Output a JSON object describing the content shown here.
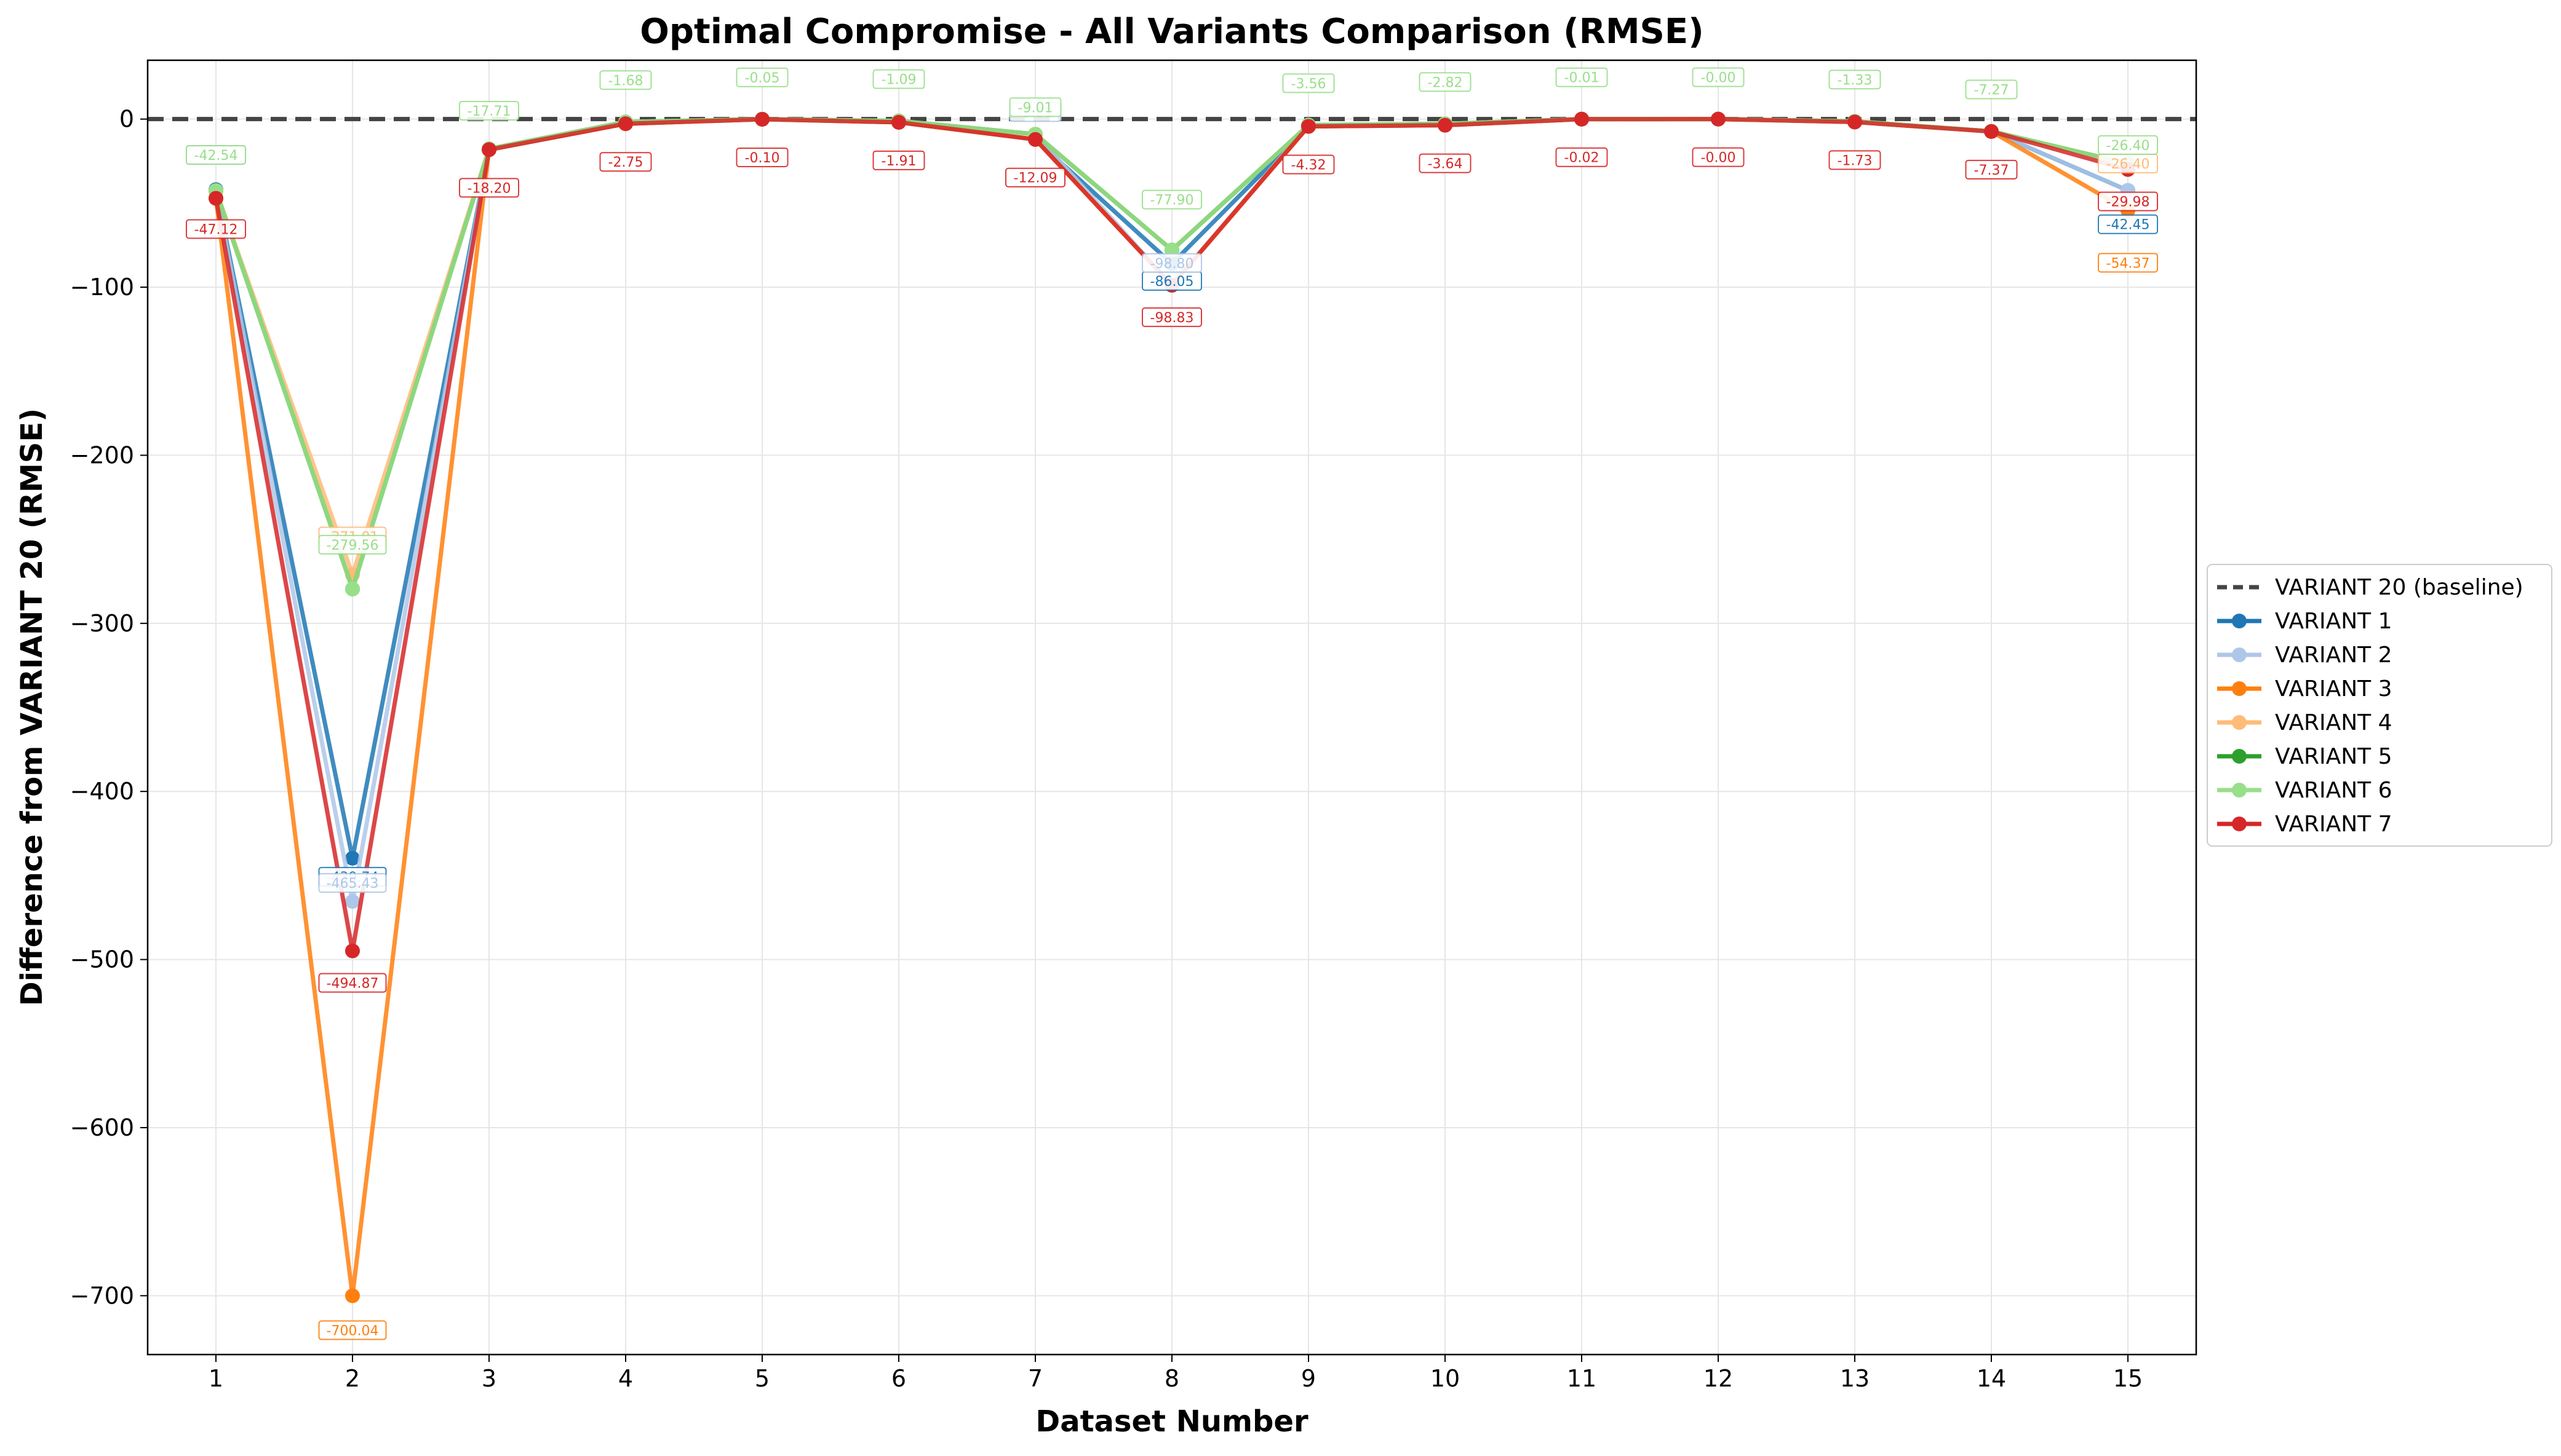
{
  "chart_data": {
    "type": "line",
    "title": "Optimal Compromise - All Variants Comparison (RMSE)",
    "xlabel": "Dataset Number",
    "ylabel": "Difference from VARIANT 20 (RMSE)",
    "x": [
      1,
      2,
      3,
      4,
      5,
      6,
      7,
      8,
      9,
      10,
      11,
      12,
      13,
      14,
      15
    ],
    "xticks": [
      "1",
      "2",
      "3",
      "4",
      "5",
      "6",
      "7",
      "8",
      "9",
      "10",
      "11",
      "12",
      "13",
      "14",
      "15"
    ],
    "yticks": [
      0,
      -100,
      -200,
      -300,
      -400,
      -500,
      -600,
      -700
    ],
    "ytick_labels": [
      "0",
      "−100",
      "−200",
      "−300",
      "−400",
      "−500",
      "−600",
      "−700"
    ],
    "xlim": [
      0.5,
      15.5
    ],
    "ylim": [
      -735,
      35
    ],
    "grid": true,
    "legend_position": "right",
    "baseline": {
      "name": "VARIANT 20 (baseline)",
      "value": 0,
      "color": "#444444"
    },
    "series": [
      {
        "name": "VARIANT 1",
        "color": "#1f77b4",
        "values": [
          -42.0,
          -439.74,
          -18.2,
          -2.75,
          -0.1,
          -1.91,
          -12.09,
          -86.05,
          -4.32,
          -3.64,
          -0.02,
          0.0,
          -1.73,
          -7.37,
          -42.45
        ],
        "labels": [
          null,
          "-439.74",
          null,
          null,
          null,
          null,
          null,
          "-86.05",
          null,
          null,
          null,
          null,
          null,
          null,
          "-42.45"
        ]
      },
      {
        "name": "VARIANT 2",
        "color": "#aec7e8",
        "values": [
          -42.54,
          -465.43,
          -17.71,
          -1.68,
          -0.05,
          -1.09,
          -9.01,
          -98.8,
          -3.56,
          -2.82,
          -0.01,
          0.0,
          -1.33,
          -7.27,
          -42.45
        ],
        "labels": [
          "-42.54",
          "-465.43",
          null,
          null,
          null,
          null,
          "-9.01",
          "-98.80",
          null,
          null,
          null,
          null,
          null,
          null,
          null
        ]
      },
      {
        "name": "VARIANT 3",
        "color": "#ff7f0e",
        "values": [
          -47.12,
          -700.04,
          -18.2,
          -2.75,
          -0.1,
          -1.91,
          -12.09,
          -98.83,
          -4.32,
          -3.64,
          -0.02,
          0.0,
          -1.73,
          -7.37,
          -54.37
        ],
        "labels": [
          null,
          "-700.04",
          null,
          null,
          null,
          null,
          null,
          null,
          null,
          null,
          null,
          null,
          null,
          null,
          "-54.37"
        ]
      },
      {
        "name": "VARIANT 4",
        "color": "#ffbb78",
        "values": [
          -42.54,
          -271.01,
          -17.71,
          -1.68,
          -0.05,
          -1.09,
          -9.01,
          -77.9,
          -3.56,
          -2.82,
          -0.01,
          0.0,
          -1.33,
          -7.27,
          -26.4
        ],
        "labels": [
          null,
          "-271.01",
          null,
          null,
          null,
          null,
          null,
          null,
          null,
          null,
          null,
          null,
          null,
          null,
          "-26.40"
        ]
      },
      {
        "name": "VARIANT 5",
        "color": "#2ca02c",
        "values": [
          -42.54,
          -279.56,
          -17.71,
          -1.68,
          -0.05,
          -1.09,
          -9.01,
          -77.9,
          -3.56,
          -2.82,
          -0.01,
          0.0,
          -1.33,
          -7.27,
          -26.4
        ],
        "labels": [
          null,
          null,
          null,
          null,
          null,
          null,
          null,
          null,
          null,
          null,
          null,
          null,
          null,
          null,
          null
        ]
      },
      {
        "name": "VARIANT 6",
        "color": "#98df8a",
        "values": [
          -42.54,
          -279.56,
          -17.71,
          -1.68,
          -0.05,
          -1.09,
          -9.01,
          -77.9,
          -3.56,
          -2.82,
          -0.01,
          0.0,
          -1.33,
          -7.27,
          -26.4
        ],
        "labels": [
          "-42.54",
          "-279.56",
          "-17.71",
          "-1.68",
          "-0.05",
          "-1.09",
          "-9.01",
          "-77.90",
          "-3.56",
          "-2.82",
          "-0.01",
          "-0.00",
          "-1.33",
          "-7.27",
          "-26.40"
        ]
      },
      {
        "name": "VARIANT 7",
        "color": "#d62728",
        "values": [
          -47.12,
          -494.87,
          -18.2,
          -2.75,
          -0.1,
          -1.91,
          -12.09,
          -98.83,
          -4.32,
          -3.64,
          -0.02,
          0.0,
          -1.73,
          -7.37,
          -29.98
        ],
        "labels": [
          "-47.12",
          "-494.87",
          "-18.20",
          "-2.75",
          "-0.10",
          "-1.91",
          "-12.09",
          "-98.83",
          "-4.32",
          "-3.64",
          "-0.02",
          "-0.00",
          "-1.73",
          "-7.37",
          "-29.98"
        ]
      }
    ]
  }
}
